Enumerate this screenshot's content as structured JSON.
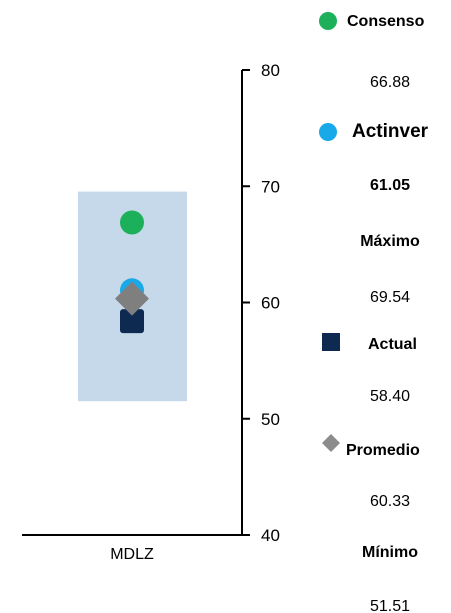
{
  "chart_data": {
    "type": "scatter",
    "categories": [
      "MDLZ"
    ],
    "ylim": [
      40,
      80
    ],
    "yticks": [
      40,
      50,
      60,
      70,
      80
    ],
    "grid": false,
    "range_band": {
      "min": 51.51,
      "max": 69.54,
      "color": "#c5d9ea"
    },
    "series": [
      {
        "name": "Consenso",
        "values": [
          66.88
        ],
        "marker": "circle",
        "color": "#1db05b"
      },
      {
        "name": "Actinver",
        "values": [
          61.05
        ],
        "marker": "circle",
        "color": "#19a8e8"
      },
      {
        "name": "Actual",
        "values": [
          58.4
        ],
        "marker": "square",
        "color": "#0e2a50"
      },
      {
        "name": "Promedio",
        "values": [
          60.33
        ],
        "marker": "diamond",
        "color": "#7f7f7f"
      }
    ],
    "legend_position": "right"
  },
  "legend": [
    {
      "label": "Consenso",
      "value": "66.88",
      "marker": "circle",
      "color": "#1db05b",
      "bold_value": false,
      "label_size": 16
    },
    {
      "label": "Actinver",
      "value": "61.05",
      "marker": "circle",
      "color": "#19a8e8",
      "bold_value": true,
      "label_size": 19
    },
    {
      "label": "Máximo",
      "value": "69.54",
      "marker": "none",
      "color": "",
      "bold_value": false,
      "label_size": 16
    },
    {
      "label": "Actual",
      "value": "58.40",
      "marker": "square",
      "color": "#0e2a50",
      "bold_value": false,
      "label_size": 16
    },
    {
      "label": "Promedio",
      "value": "60.33",
      "marker": "diamond",
      "color": "#8c8c8c",
      "bold_value": false,
      "label_size": 16
    },
    {
      "label": "Mínimo",
      "value": "51.51",
      "marker": "none",
      "color": "",
      "bold_value": false,
      "label_size": 16
    }
  ]
}
